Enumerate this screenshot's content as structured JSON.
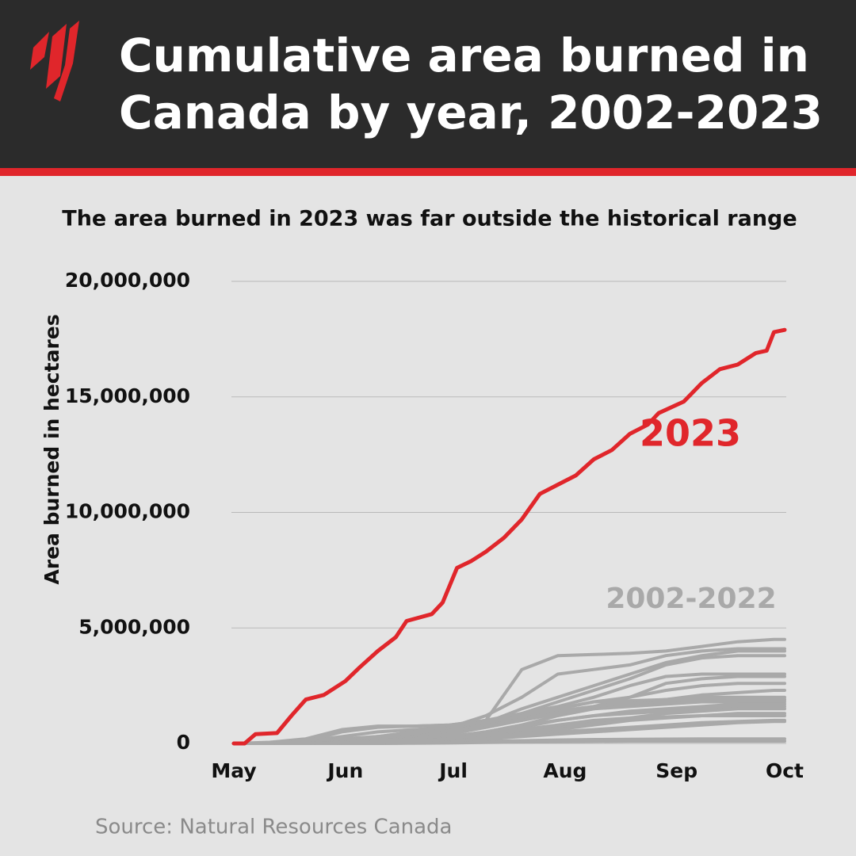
{
  "chart_data": {
    "type": "line",
    "title": [
      "Cumulative area burned in",
      "Canada by year, 2002-2023"
    ],
    "subtitle": "The area burned in 2023 was far outside the historical range",
    "y_label": "Area burned in hectares",
    "source": "Source: Natural Resources Canada",
    "group_label": "2002-2022",
    "group_color": "#a9a9a9",
    "xlim": [
      0,
      153
    ],
    "xticks": [
      {
        "value": 0,
        "label": "May"
      },
      {
        "value": 31,
        "label": "Jun"
      },
      {
        "value": 61,
        "label": "Jul"
      },
      {
        "value": 92,
        "label": "Aug"
      },
      {
        "value": 123,
        "label": "Sep"
      },
      {
        "value": 153,
        "label": "Oct"
      }
    ],
    "ylim": [
      0,
      20000000
    ],
    "yticks": [
      0,
      {
        "value": 5000000,
        "label": "5,000,000"
      },
      {
        "value": 10000000,
        "label": "10,000,000"
      },
      {
        "value": 15000000,
        "label": "15,000,000"
      },
      {
        "value": 20000000,
        "label": "20,000,000"
      }
    ],
    "grid": true,
    "x": [
      0,
      10,
      20,
      30,
      40,
      50,
      60,
      70,
      80,
      90,
      100,
      110,
      120,
      130,
      140,
      150,
      153
    ],
    "series": [
      {
        "name": "2023",
        "color": "#e0262b",
        "x": [
          0,
          3,
          6,
          12,
          16,
          20,
          25,
          31,
          35,
          40,
          45,
          48,
          55,
          58,
          62,
          66,
          70,
          75,
          80,
          85,
          90,
          95,
          100,
          105,
          110,
          115,
          118,
          125,
          130,
          135,
          140,
          145,
          148,
          150,
          153
        ],
        "values": [
          0,
          0,
          400000,
          450000,
          1200000,
          1900000,
          2100000,
          2700000,
          3300000,
          4000000,
          4600000,
          5300000,
          5600000,
          6100000,
          7600000,
          7900000,
          8300000,
          8900000,
          9700000,
          10800000,
          11200000,
          11600000,
          12300000,
          12700000,
          13400000,
          13800000,
          14300000,
          14800000,
          15600000,
          16200000,
          16400000,
          16900000,
          17000000,
          17800000,
          17900000
        ]
      },
      {
        "values": [
          0,
          50000,
          200000,
          600000,
          750000,
          750000,
          800000,
          1000000,
          3200000,
          3800000,
          3850000,
          3900000,
          4000000,
          4200000,
          4400000,
          4500000,
          4500000
        ]
      },
      {
        "values": [
          0,
          0,
          100000,
          300000,
          500000,
          600000,
          700000,
          1200000,
          2000000,
          3000000,
          3200000,
          3400000,
          3800000,
          4000000,
          4100000,
          4100000,
          4100000
        ]
      },
      {
        "values": [
          0,
          0,
          50000,
          100000,
          300000,
          400000,
          600000,
          900000,
          1500000,
          2000000,
          2500000,
          3000000,
          3500000,
          3800000,
          4000000,
          4000000,
          4000000
        ]
      },
      {
        "values": [
          0,
          0,
          0,
          100000,
          200000,
          400000,
          600000,
          900000,
          1300000,
          1800000,
          2300000,
          2800000,
          3400000,
          3700000,
          3800000,
          3800000,
          3800000
        ]
      },
      {
        "values": [
          0,
          0,
          50000,
          200000,
          300000,
          500000,
          700000,
          900000,
          1100000,
          1400000,
          1600000,
          2000000,
          2600000,
          2800000,
          2900000,
          2900000,
          2900000
        ]
      },
      {
        "values": [
          0,
          0,
          0,
          50000,
          100000,
          200000,
          400000,
          800000,
          1200000,
          1500000,
          1800000,
          2000000,
          2300000,
          2500000,
          2600000,
          2600000,
          2600000
        ]
      },
      {
        "values": [
          0,
          0,
          20000,
          100000,
          200000,
          300000,
          500000,
          700000,
          1000000,
          1300000,
          1500000,
          1700000,
          1900000,
          2100000,
          2200000,
          2300000,
          2300000
        ]
      },
      {
        "values": [
          0,
          0,
          0,
          50000,
          100000,
          300000,
          500000,
          800000,
          1100000,
          1400000,
          1600000,
          1700000,
          1800000,
          1900000,
          1900000,
          1900000,
          1900000
        ]
      },
      {
        "values": [
          0,
          0,
          0,
          20000,
          100000,
          200000,
          300000,
          500000,
          800000,
          1200000,
          1500000,
          1600000,
          1700000,
          1800000,
          1800000,
          1800000,
          1800000
        ]
      },
      {
        "values": [
          0,
          0,
          0,
          30000,
          80000,
          150000,
          300000,
          500000,
          800000,
          1000000,
          1200000,
          1400000,
          1500000,
          1600000,
          1700000,
          1700000,
          1700000
        ]
      },
      {
        "values": [
          0,
          0,
          0,
          20000,
          50000,
          100000,
          200000,
          400000,
          700000,
          1000000,
          1200000,
          1300000,
          1400000,
          1500000,
          1600000,
          1600000,
          1600000
        ]
      },
      {
        "values": [
          0,
          0,
          0,
          0,
          50000,
          100000,
          200000,
          300000,
          500000,
          700000,
          900000,
          1100000,
          1300000,
          1400000,
          1500000,
          1500000,
          1500000
        ]
      },
      {
        "values": [
          0,
          0,
          0,
          0,
          20000,
          50000,
          100000,
          200000,
          400000,
          600000,
          800000,
          1000000,
          1100000,
          1200000,
          1300000,
          1300000,
          1300000
        ]
      },
      {
        "values": [
          0,
          0,
          0,
          20000,
          50000,
          100000,
          200000,
          300000,
          400000,
          500000,
          600000,
          700000,
          800000,
          900000,
          950000,
          1000000,
          1000000
        ]
      },
      {
        "values": [
          0,
          0,
          0,
          0,
          20000,
          50000,
          100000,
          200000,
          300000,
          400000,
          500000,
          600000,
          700000,
          800000,
          900000,
          950000,
          950000
        ]
      },
      {
        "values": [
          0,
          0,
          0,
          0,
          0,
          20000,
          50000,
          100000,
          120000,
          150000,
          170000,
          180000,
          190000,
          200000,
          200000,
          200000,
          200000
        ]
      },
      {
        "values": [
          0,
          0,
          0,
          0,
          0,
          10000,
          20000,
          40000,
          60000,
          80000,
          90000,
          100000,
          100000,
          100000,
          100000,
          100000,
          100000
        ]
      },
      {
        "values": [
          0,
          0,
          50000,
          150000,
          300000,
          500000,
          800000,
          1000000,
          1300000,
          1600000,
          2000000,
          2500000,
          2900000,
          3000000,
          3000000,
          3000000,
          3000000
        ]
      },
      {
        "values": [
          0,
          0,
          0,
          50000,
          100000,
          200000,
          400000,
          700000,
          1000000,
          1300000,
          1600000,
          1800000,
          1900000,
          2000000,
          2000000,
          2000000,
          2000000
        ]
      },
      {
        "values": [
          0,
          0,
          0,
          20000,
          50000,
          100000,
          200000,
          400000,
          600000,
          800000,
          1000000,
          1100000,
          1150000,
          1200000,
          1200000,
          1200000,
          1200000
        ]
      },
      {
        "values": [
          0,
          0,
          100000,
          500000,
          700000,
          750000,
          800000,
          900000,
          1200000,
          1500000,
          1800000,
          1850000,
          1900000,
          1900000,
          1900000,
          1900000,
          1900000
        ]
      }
    ]
  }
}
